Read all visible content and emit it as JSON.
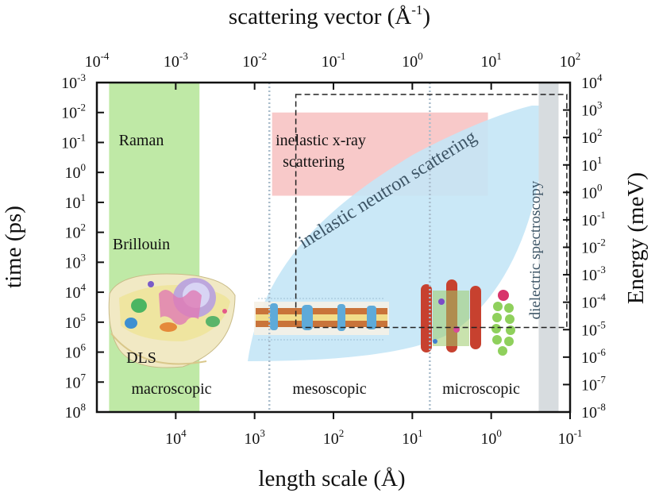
{
  "chart_data": {
    "type": "region-map",
    "title": "",
    "axes": {
      "bottom": {
        "label": "length scale (Å)",
        "scale": "log-reversed",
        "range": [
          100000,
          0.1
        ],
        "ticks": [
          {
            "value": 10000,
            "base": "10",
            "exp": "4"
          },
          {
            "value": 1000,
            "base": "10",
            "exp": "3"
          },
          {
            "value": 100,
            "base": "10",
            "exp": "2"
          },
          {
            "value": 10,
            "base": "10",
            "exp": "1"
          },
          {
            "value": 1,
            "base": "10",
            "exp": "0"
          },
          {
            "value": 0.1,
            "base": "10",
            "exp": "-1"
          }
        ]
      },
      "top": {
        "label_main": "scattering vector (Å",
        "label_sup": "-1",
        "label_end": ")",
        "scale": "log",
        "range": [
          0.0001,
          100
        ],
        "ticks": [
          {
            "value": 0.0001,
            "base": "10",
            "exp": "-4"
          },
          {
            "value": 0.001,
            "base": "10",
            "exp": "-3"
          },
          {
            "value": 0.01,
            "base": "10",
            "exp": "-2"
          },
          {
            "value": 0.1,
            "base": "10",
            "exp": "-1"
          },
          {
            "value": 1,
            "base": "10",
            "exp": "0"
          },
          {
            "value": 10,
            "base": "10",
            "exp": "1"
          },
          {
            "value": 100,
            "base": "10",
            "exp": "2"
          }
        ]
      },
      "left": {
        "label": "time (ps)",
        "scale": "log",
        "range": [
          0.001,
          100000000
        ],
        "ticks": [
          {
            "value": 0.001,
            "base": "10",
            "exp": "-3"
          },
          {
            "value": 0.01,
            "base": "10",
            "exp": "-2"
          },
          {
            "value": 0.1,
            "base": "10",
            "exp": "-1"
          },
          {
            "value": 1,
            "base": "10",
            "exp": "0"
          },
          {
            "value": 10,
            "base": "10",
            "exp": "1"
          },
          {
            "value": 100,
            "base": "10",
            "exp": "2"
          },
          {
            "value": 1000,
            "base": "10",
            "exp": "3"
          },
          {
            "value": 10000,
            "base": "10",
            "exp": "4"
          },
          {
            "value": 100000,
            "base": "10",
            "exp": "5"
          },
          {
            "value": 1000000,
            "base": "10",
            "exp": "6"
          },
          {
            "value": 10000000,
            "base": "10",
            "exp": "7"
          },
          {
            "value": 100000000,
            "base": "10",
            "exp": "8"
          }
        ]
      },
      "right": {
        "label": "Energy (meV)",
        "scale": "log",
        "range": [
          10000,
          1e-08
        ],
        "ticks": [
          {
            "value": 10000,
            "base": "10",
            "exp": "4"
          },
          {
            "value": 1000,
            "base": "10",
            "exp": "3"
          },
          {
            "value": 100,
            "base": "10",
            "exp": "2"
          },
          {
            "value": 10,
            "base": "10",
            "exp": "1"
          },
          {
            "value": 1,
            "base": "10",
            "exp": "0"
          },
          {
            "value": 0.1,
            "base": "10",
            "exp": "-1"
          },
          {
            "value": 0.01,
            "base": "10",
            "exp": "-2"
          },
          {
            "value": 0.001,
            "base": "10",
            "exp": "-3"
          },
          {
            "value": 0.0001,
            "base": "10",
            "exp": "-4"
          },
          {
            "value": 1e-05,
            "base": "10",
            "exp": "-5"
          },
          {
            "value": 1e-06,
            "base": "10",
            "exp": "-6"
          },
          {
            "value": 1e-07,
            "base": "10",
            "exp": "-7"
          },
          {
            "value": 1e-08,
            "base": "10",
            "exp": "-8"
          }
        ]
      }
    },
    "regions": [
      {
        "name": "light-scattering",
        "kind": "band",
        "color": "#bfe9a6",
        "length_range": [
          70000,
          5000
        ],
        "time_range": [
          0.0005,
          100000000
        ]
      },
      {
        "name": "inelastic-x-ray-scattering",
        "kind": "rect",
        "color": "#f8c6c6",
        "length_range": [
          600,
          1.1
        ],
        "time_range": [
          0.01,
          6
        ]
      },
      {
        "name": "inelastic-neutron-scattering",
        "kind": "band",
        "color": "#c4e6f6"
      },
      {
        "name": "dielectric-spectroscopy",
        "kind": "band",
        "color": "#d7dcdf",
        "length_range": [
          0.25,
          0.14
        ],
        "time_range": [
          0.0005,
          100000000
        ]
      }
    ],
    "region_labels": {
      "raman": "Raman",
      "brillouin": "Brillouin",
      "dls": "DLS",
      "ixs_line1": "inelastic x-ray",
      "ixs_line2": "scattering",
      "ins": "inelastic neutron scattering",
      "dielectric": "dielectric spectroscopy",
      "macroscopic": "macroscopic",
      "mesoscopic": "mesoscopic",
      "microscopic": "microscopic"
    },
    "dashed_box": {
      "length_range": [
        300,
        0.11
      ],
      "time_range": [
        0.0025,
        150000
      ]
    },
    "scale_dividers_length": [
      650,
      6
    ],
    "colors": {
      "light": "#bfe9a6",
      "xray": "#f8c6c6",
      "neutron": "#c4e6f6",
      "dielectric": "#d7dcdf"
    }
  }
}
